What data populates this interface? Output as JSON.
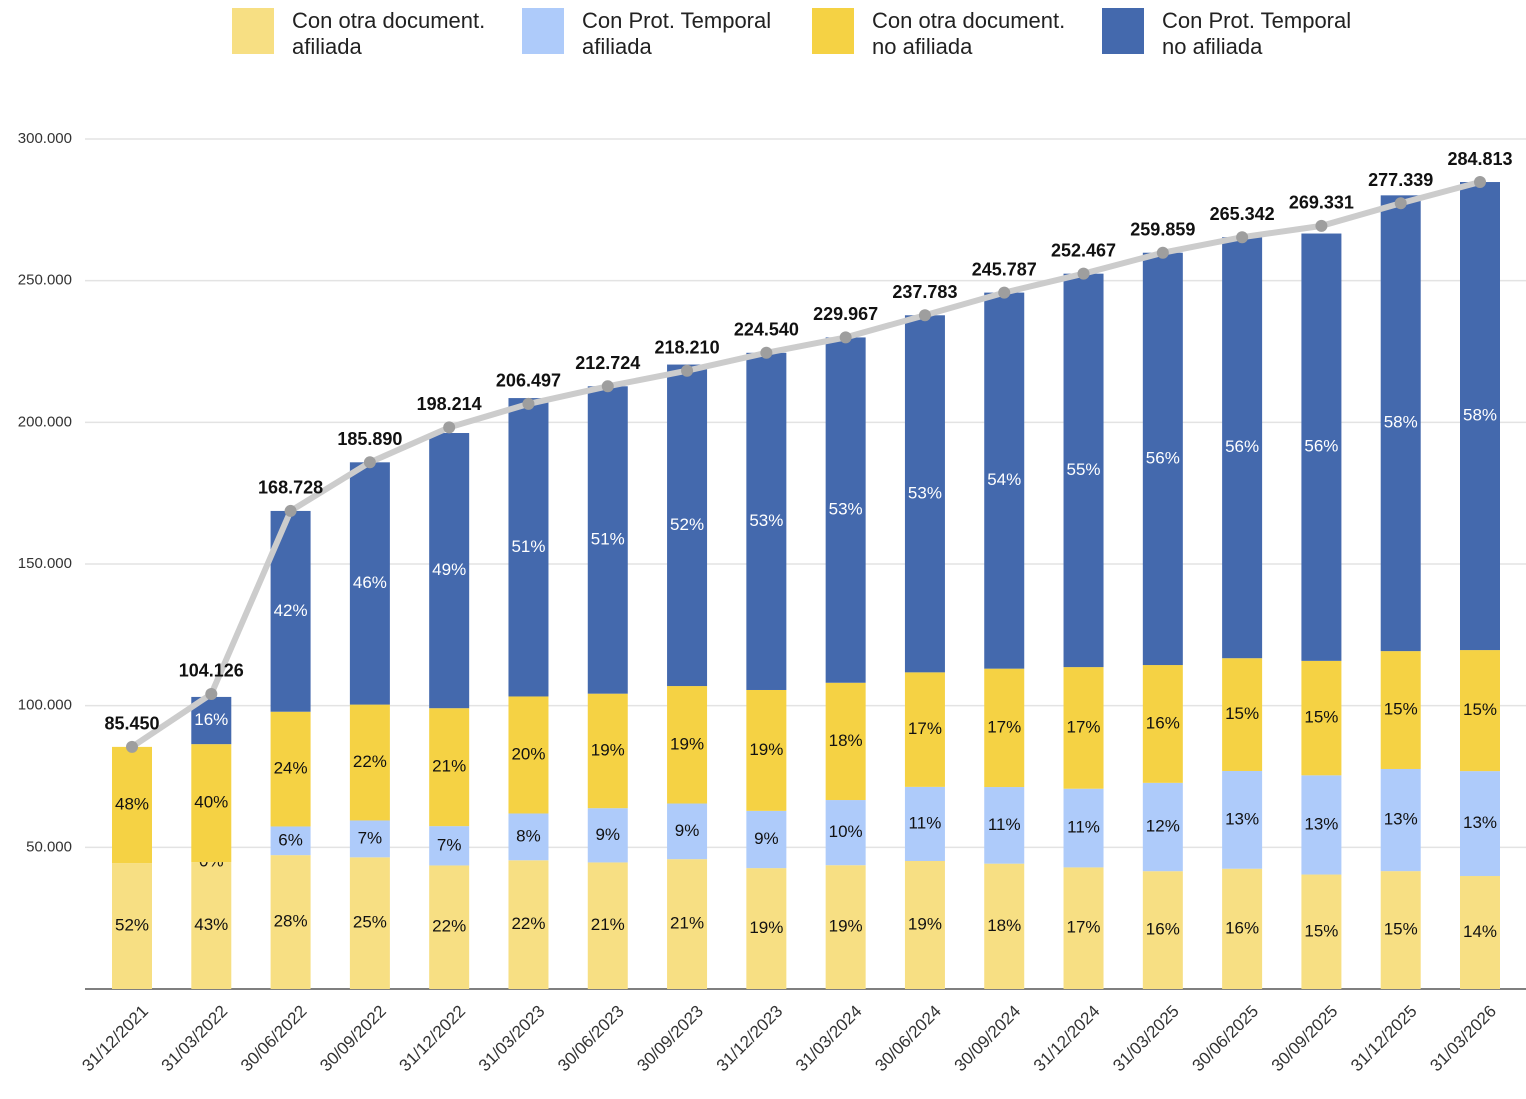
{
  "chart_data": {
    "type": "bar",
    "stacked": true,
    "categories": [
      "31/12/2021",
      "31/03/2022",
      "30/06/2022",
      "30/09/2022",
      "31/12/2022",
      "31/03/2023",
      "30/06/2023",
      "30/09/2023",
      "31/12/2023",
      "31/03/2024",
      "30/06/2024",
      "30/09/2024",
      "31/12/2024",
      "31/03/2025",
      "30/06/2025",
      "30/09/2025",
      "31/12/2025",
      "31/03/2026"
    ],
    "series": [
      {
        "name": "Con otra document.\nafiliada",
        "color": "#f7df83",
        "values": [
          52,
          43,
          28,
          25,
          22,
          22,
          21,
          21,
          19,
          19,
          19,
          18,
          17,
          16,
          16,
          15,
          15,
          14
        ]
      },
      {
        "name": "Con Prot. Temporal\nafiliada",
        "color": "#aecbfa",
        "values": [
          null,
          0,
          6,
          7,
          7,
          8,
          9,
          9,
          9,
          10,
          11,
          11,
          11,
          12,
          13,
          13,
          13,
          13
        ]
      },
      {
        "name": "Con otra document.\nno afiliada",
        "color": "#f5d244",
        "values": [
          48,
          40,
          24,
          22,
          21,
          20,
          19,
          19,
          19,
          18,
          17,
          17,
          17,
          16,
          15,
          15,
          15,
          15
        ]
      },
      {
        "name": "Con Prot. Temporal\nno afiliada",
        "color": "#4469ad",
        "values": [
          null,
          16,
          42,
          46,
          49,
          51,
          51,
          52,
          53,
          53,
          53,
          54,
          55,
          56,
          56,
          56,
          58,
          58
        ]
      }
    ],
    "value_unit": "%",
    "totals": {
      "color": "#cccccc",
      "values": [
        85450,
        104126,
        168728,
        185890,
        198214,
        206497,
        212724,
        218210,
        224540,
        229967,
        237783,
        245787,
        252467,
        259859,
        265342,
        269331,
        277339,
        284813
      ],
      "value_labels": [
        "85.450",
        "104.126",
        "168.728",
        "185.890",
        "198.214",
        "206.497",
        "212.724",
        "218.210",
        "224.540",
        "229.967",
        "237.783",
        "245.787",
        "252.467",
        "259.859",
        "265.342",
        "269.331",
        "277.339",
        "284.813"
      ]
    },
    "ylim": [
      0,
      300000
    ],
    "yticks": [
      {
        "value": 50000,
        "label": "50.000"
      },
      {
        "value": 100000,
        "label": "100.000"
      },
      {
        "value": 150000,
        "label": "150.000"
      },
      {
        "value": 200000,
        "label": "200.000"
      },
      {
        "value": 250000,
        "label": "250.000"
      },
      {
        "value": 300000,
        "label": "300.000"
      }
    ],
    "grid": true,
    "legend": "top"
  }
}
